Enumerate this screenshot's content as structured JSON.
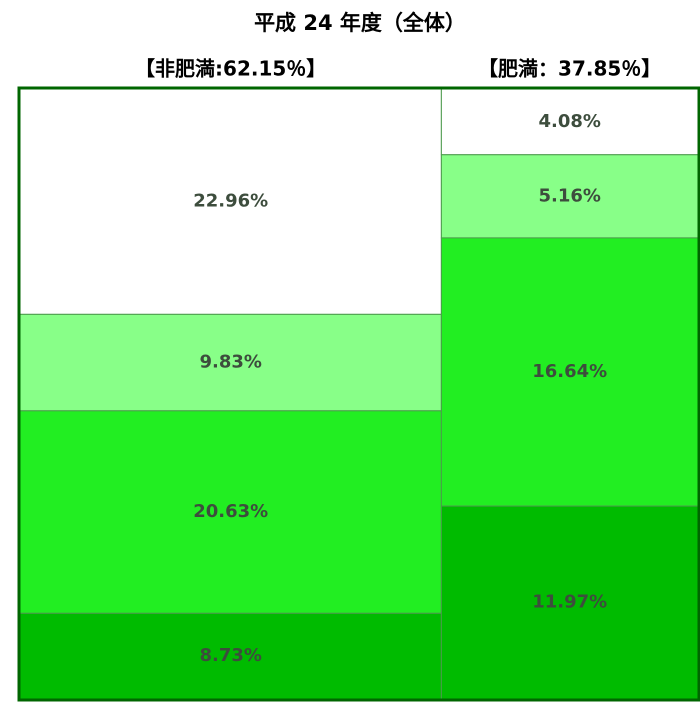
{
  "chart_data": {
    "type": "mosaic",
    "title": "平成 24 年度（全体）",
    "colors": [
      "#ffffff",
      "#88ff88",
      "#22ee22",
      "#00bb00"
    ],
    "frame_color": "#006600",
    "columns": [
      {
        "label": "【非肥満:62.15％】",
        "value": 62.15,
        "values": [
          22.96,
          9.83,
          20.63,
          8.73
        ],
        "value_labels": [
          "22.96%",
          "9.83%",
          "20.63%",
          "8.73%"
        ]
      },
      {
        "label": "【肥満：37.85％】",
        "value": 37.85,
        "values": [
          4.08,
          5.16,
          16.64,
          11.97
        ],
        "value_labels": [
          "4.08%",
          "5.16%",
          "16.64%",
          "11.97%"
        ]
      }
    ]
  }
}
